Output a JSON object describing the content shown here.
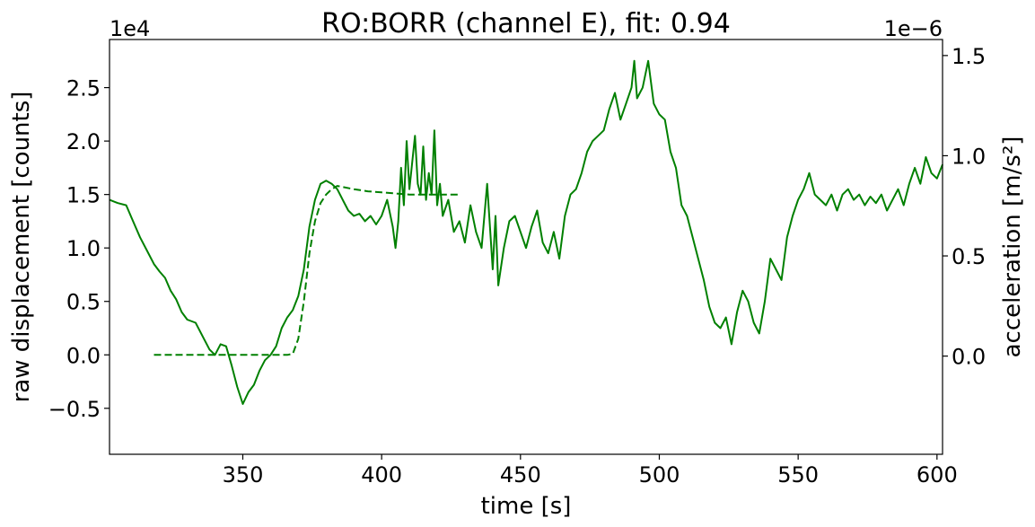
{
  "chart_data": {
    "type": "line",
    "title": "RO:BORR  (channel E), fit: 0.94",
    "xlabel": "time [s]",
    "ylabel": "raw displacement [counts]",
    "ylabel_right": "acceleration [m/s²]",
    "y_offset_text": "1e4",
    "y_right_offset_text": "1e−6",
    "xlim": [
      302,
      602
    ],
    "ylim": [
      -0.93,
      2.95
    ],
    "ylim_right": [
      -0.49,
      1.58
    ],
    "x_ticks": [
      350,
      400,
      450,
      500,
      550,
      600
    ],
    "x_tick_labels": [
      "350",
      "400",
      "450",
      "500",
      "550",
      "600"
    ],
    "y_ticks": [
      -0.5,
      0.0,
      0.5,
      1.0,
      1.5,
      2.0,
      2.5
    ],
    "y_tick_labels": [
      "−0.5",
      "0.0",
      "0.5",
      "1.0",
      "1.5",
      "2.0",
      "2.5"
    ],
    "y_right_ticks": [
      0.0,
      0.5,
      1.0,
      1.5
    ],
    "y_right_tick_labels": [
      "0.0",
      "0.5",
      "1.0",
      "1.5"
    ],
    "grid": false,
    "line_color": "#008000",
    "series": [
      {
        "style": "solid",
        "axis": "left",
        "x": [
          302,
          305,
          308,
          310,
          313,
          316,
          318,
          320,
          322,
          324,
          326,
          328,
          330,
          333,
          336,
          338,
          340,
          342,
          344,
          346,
          348,
          350,
          352,
          354,
          356,
          358,
          360,
          362,
          364,
          366,
          368,
          370,
          372,
          374,
          376,
          378,
          380,
          382,
          384,
          386,
          388,
          390,
          392,
          394,
          396,
          398,
          400,
          402,
          404,
          405,
          406,
          407,
          408,
          409,
          410,
          411,
          412,
          413,
          414,
          415,
          416,
          417,
          418,
          419,
          420,
          421,
          422,
          424,
          426,
          428,
          430,
          432,
          434,
          436,
          438,
          440,
          441,
          442,
          444,
          446,
          448,
          450,
          452,
          454,
          456,
          458,
          460,
          462,
          464,
          466,
          468,
          470,
          472,
          474,
          476,
          478,
          480,
          482,
          484,
          486,
          488,
          490,
          491,
          492,
          494,
          496,
          498,
          500,
          502,
          504,
          506,
          508,
          510,
          512,
          514,
          516,
          518,
          520,
          522,
          524,
          526,
          528,
          530,
          532,
          534,
          536,
          538,
          540,
          542,
          544,
          546,
          548,
          550,
          552,
          554,
          556,
          558,
          560,
          562,
          564,
          566,
          568,
          570,
          572,
          574,
          576,
          578,
          580,
          582,
          584,
          586,
          588,
          590,
          592,
          594,
          596,
          598,
          600,
          602
        ],
        "y": [
          1.45,
          1.42,
          1.4,
          1.28,
          1.1,
          0.95,
          0.85,
          0.78,
          0.72,
          0.6,
          0.52,
          0.4,
          0.33,
          0.3,
          0.15,
          0.05,
          0.0,
          0.1,
          0.08,
          -0.1,
          -0.3,
          -0.46,
          -0.35,
          -0.28,
          -0.15,
          -0.05,
          0.0,
          0.08,
          0.25,
          0.35,
          0.42,
          0.55,
          0.8,
          1.2,
          1.45,
          1.6,
          1.63,
          1.6,
          1.55,
          1.45,
          1.35,
          1.3,
          1.32,
          1.25,
          1.3,
          1.22,
          1.3,
          1.45,
          1.2,
          1.0,
          1.25,
          1.75,
          1.4,
          2.0,
          1.55,
          1.8,
          2.05,
          1.6,
          1.5,
          1.95,
          1.45,
          1.7,
          1.5,
          2.1,
          1.4,
          1.6,
          1.3,
          1.45,
          1.15,
          1.25,
          1.05,
          1.4,
          1.15,
          1.0,
          1.6,
          0.8,
          1.3,
          0.65,
          1.0,
          1.25,
          1.3,
          1.15,
          1.0,
          1.2,
          1.35,
          1.05,
          0.95,
          1.15,
          0.9,
          1.3,
          1.5,
          1.55,
          1.7,
          1.9,
          2.0,
          2.05,
          2.1,
          2.3,
          2.45,
          2.2,
          2.35,
          2.5,
          2.75,
          2.4,
          2.5,
          2.75,
          2.35,
          2.25,
          2.2,
          1.9,
          1.75,
          1.4,
          1.3,
          1.1,
          0.9,
          0.7,
          0.45,
          0.3,
          0.25,
          0.35,
          0.1,
          0.4,
          0.6,
          0.5,
          0.3,
          0.2,
          0.5,
          0.9,
          0.8,
          0.7,
          1.1,
          1.3,
          1.45,
          1.55,
          1.7,
          1.5,
          1.45,
          1.4,
          1.5,
          1.35,
          1.5,
          1.55,
          1.45,
          1.5,
          1.4,
          1.48,
          1.42,
          1.5,
          1.35,
          1.45,
          1.55,
          1.4,
          1.6,
          1.75,
          1.6,
          1.85,
          1.7,
          1.65,
          1.78
        ]
      },
      {
        "style": "dashed",
        "axis": "left",
        "x": [
          318,
          330,
          340,
          350,
          360,
          366,
          368,
          370,
          372,
          374,
          376,
          378,
          380,
          382,
          384,
          386,
          390,
          395,
          400,
          405,
          410,
          420,
          428
        ],
        "y": [
          0.0,
          0.0,
          0.0,
          0.0,
          0.0,
          0.0,
          0.01,
          0.15,
          0.5,
          0.95,
          1.25,
          1.42,
          1.5,
          1.55,
          1.58,
          1.57,
          1.55,
          1.53,
          1.52,
          1.51,
          1.5,
          1.5,
          1.5
        ]
      }
    ]
  }
}
